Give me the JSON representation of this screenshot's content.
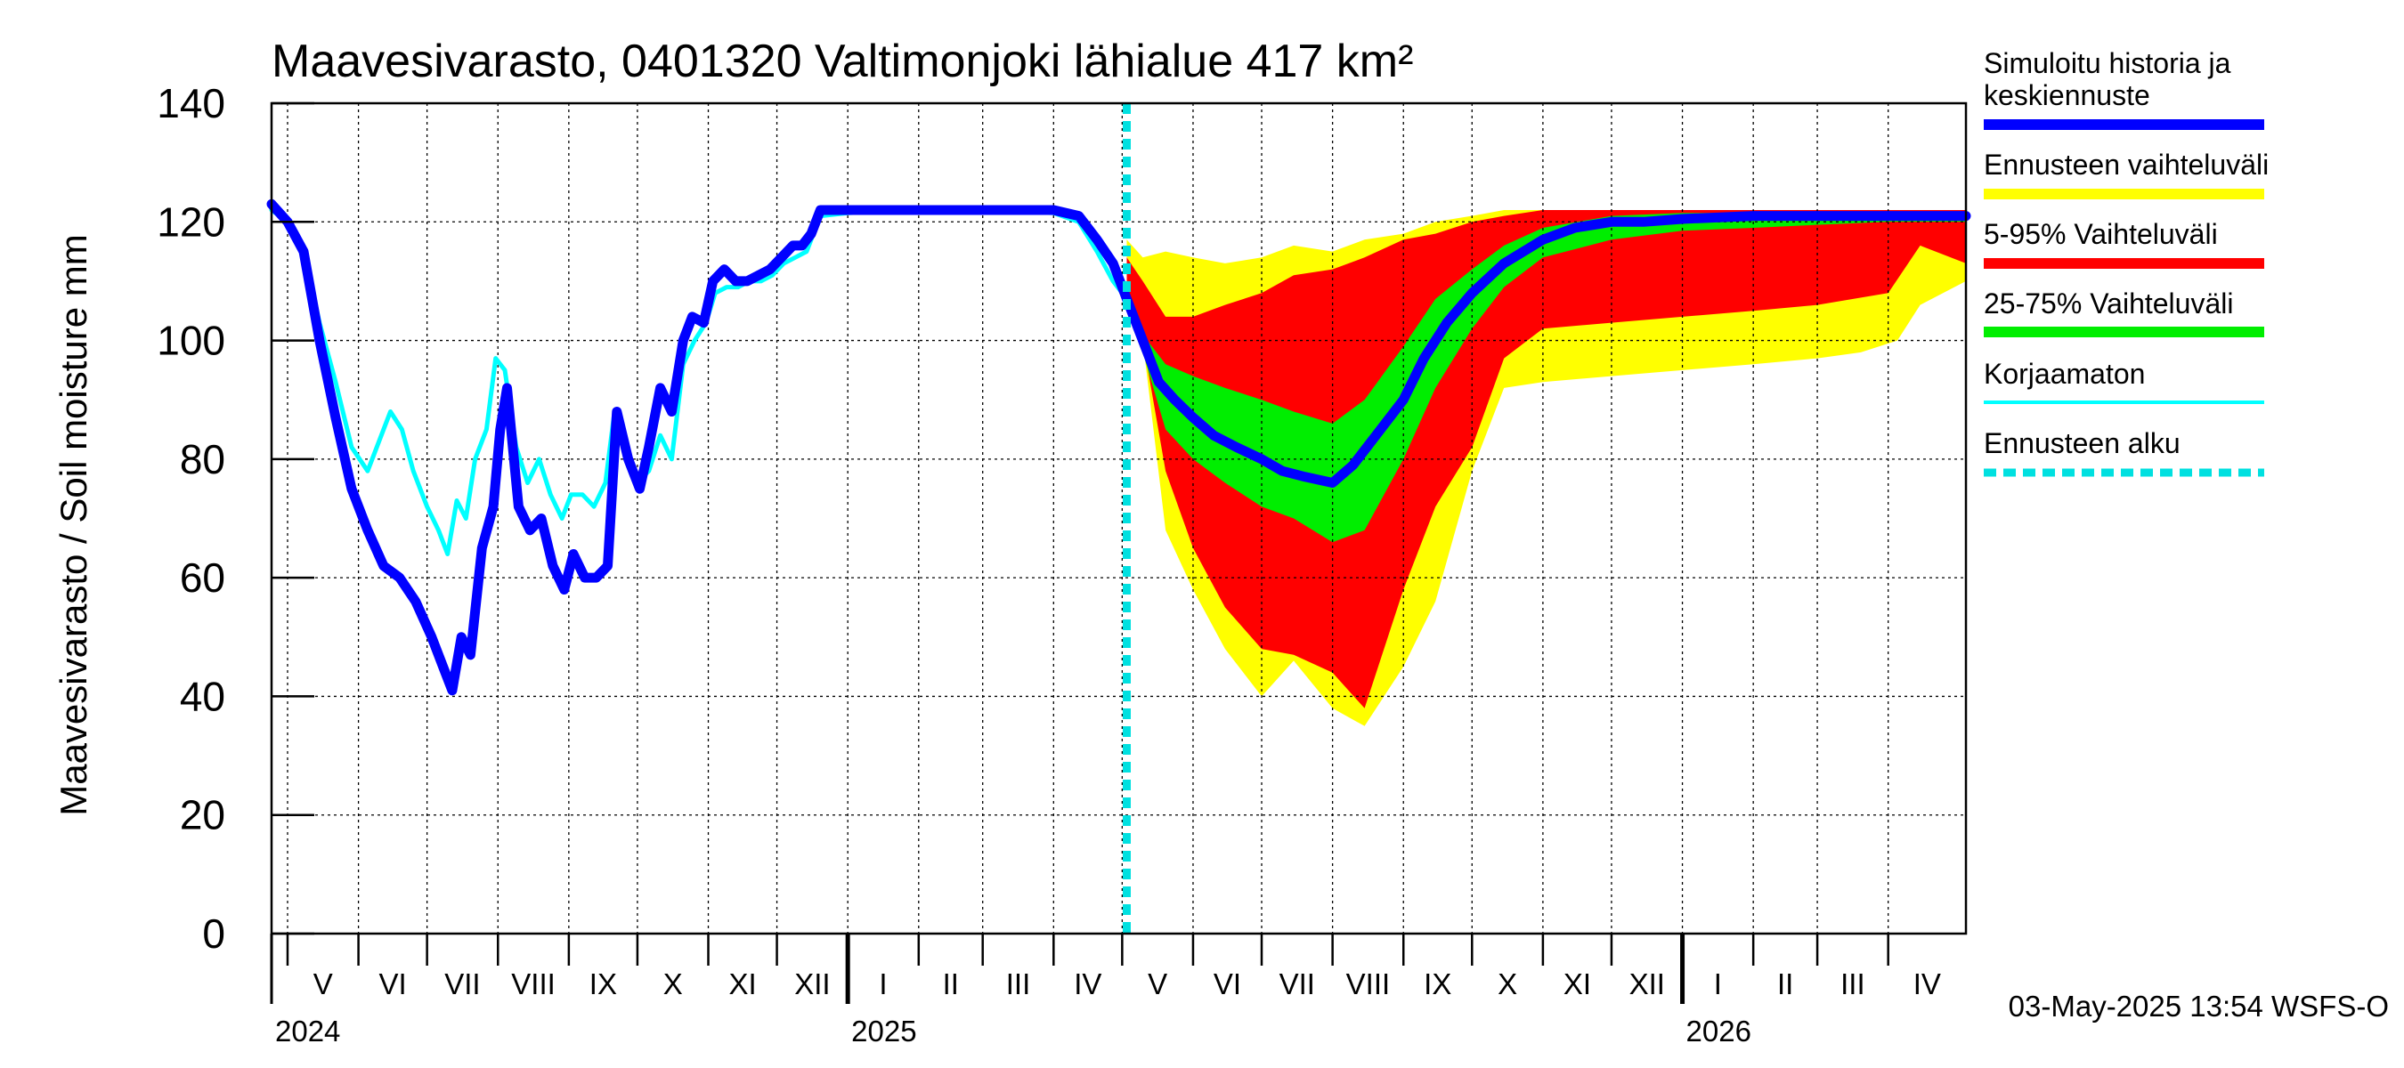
{
  "chart_data": {
    "type": "area",
    "title": "Maavesivarasto, 0401320 Valtimonjoki lähialue 417 km²",
    "ylabel": "Maavesivarasto / Soil moisture   mm",
    "ylim": [
      0,
      140
    ],
    "yticks": [
      0,
      20,
      40,
      60,
      80,
      100,
      120,
      140
    ],
    "xlim": [
      "2024-04-24",
      "2026-05-05"
    ],
    "forecast_start": "2025-05-03",
    "grid": true,
    "legend_position": "right",
    "month_labels": [
      {
        "label": "V",
        "date": "2024-05-01"
      },
      {
        "label": "VI",
        "date": "2024-06-01"
      },
      {
        "label": "VII",
        "date": "2024-07-01"
      },
      {
        "label": "VIII",
        "date": "2024-08-01"
      },
      {
        "label": "IX",
        "date": "2024-09-01"
      },
      {
        "label": "X",
        "date": "2024-10-01"
      },
      {
        "label": "XI",
        "date": "2024-11-01"
      },
      {
        "label": "XII",
        "date": "2024-12-01"
      },
      {
        "label": "I",
        "date": "2025-01-01"
      },
      {
        "label": "II",
        "date": "2025-02-01"
      },
      {
        "label": "III",
        "date": "2025-03-01"
      },
      {
        "label": "IV",
        "date": "2025-04-01"
      },
      {
        "label": "V",
        "date": "2025-05-01"
      },
      {
        "label": "VI",
        "date": "2025-06-01"
      },
      {
        "label": "VII",
        "date": "2025-07-01"
      },
      {
        "label": "VIII",
        "date": "2025-08-01"
      },
      {
        "label": "IX",
        "date": "2025-09-01"
      },
      {
        "label": "X",
        "date": "2025-10-01"
      },
      {
        "label": "XI",
        "date": "2025-11-01"
      },
      {
        "label": "XII",
        "date": "2025-12-01"
      },
      {
        "label": "I",
        "date": "2026-01-01"
      },
      {
        "label": "II",
        "date": "2026-02-01"
      },
      {
        "label": "III",
        "date": "2026-03-01"
      },
      {
        "label": "IV",
        "date": "2026-04-01"
      }
    ],
    "year_labels": [
      {
        "label": "2024",
        "date": "2024-04-24"
      },
      {
        "label": "2025",
        "date": "2025-01-01"
      },
      {
        "label": "2026",
        "date": "2026-01-01"
      }
    ],
    "legend": [
      {
        "label": "Simuloitu historia ja\nkeskiennuste",
        "color": "#0000ff",
        "style": "solid-thick"
      },
      {
        "label": "Ennusteen vaihteluväli",
        "color": "#ffff00",
        "style": "solid-thick"
      },
      {
        "label": "5-95% Vaihteluväli",
        "color": "#ff0000",
        "style": "solid-thick"
      },
      {
        "label": "25-75% Vaihteluväli",
        "color": "#00ee00",
        "style": "solid-thick"
      },
      {
        "label": "Korjaamaton",
        "color": "#00ffff",
        "style": "solid-thin"
      },
      {
        "label": "Ennusteen alku",
        "color": "#00e0e0",
        "style": "dashed"
      }
    ],
    "footer": "03-May-2025 13:54 WSFS-O",
    "series": [
      {
        "name": "Simuloitu historia ja keskiennuste",
        "color": "#0000ff",
        "points": [
          [
            "2024-04-24",
            123
          ],
          [
            "2024-05-01",
            120
          ],
          [
            "2024-05-08",
            115
          ],
          [
            "2024-05-15",
            100
          ],
          [
            "2024-05-22",
            87
          ],
          [
            "2024-05-29",
            75
          ],
          [
            "2024-06-05",
            68
          ],
          [
            "2024-06-12",
            62
          ],
          [
            "2024-06-19",
            60
          ],
          [
            "2024-06-26",
            56
          ],
          [
            "2024-07-03",
            50
          ],
          [
            "2024-07-08",
            45
          ],
          [
            "2024-07-12",
            41
          ],
          [
            "2024-07-16",
            50
          ],
          [
            "2024-07-20",
            47
          ],
          [
            "2024-07-25",
            65
          ],
          [
            "2024-07-30",
            72
          ],
          [
            "2024-08-02",
            85
          ],
          [
            "2024-08-05",
            92
          ],
          [
            "2024-08-10",
            72
          ],
          [
            "2024-08-15",
            68
          ],
          [
            "2024-08-20",
            70
          ],
          [
            "2024-08-25",
            62
          ],
          [
            "2024-08-30",
            58
          ],
          [
            "2024-09-03",
            64
          ],
          [
            "2024-09-08",
            60
          ],
          [
            "2024-09-13",
            60
          ],
          [
            "2024-09-18",
            62
          ],
          [
            "2024-09-22",
            88
          ],
          [
            "2024-09-27",
            80
          ],
          [
            "2024-10-02",
            75
          ],
          [
            "2024-10-06",
            82
          ],
          [
            "2024-10-11",
            92
          ],
          [
            "2024-10-16",
            88
          ],
          [
            "2024-10-21",
            100
          ],
          [
            "2024-10-25",
            104
          ],
          [
            "2024-10-30",
            103
          ],
          [
            "2024-11-03",
            110
          ],
          [
            "2024-11-08",
            112
          ],
          [
            "2024-11-13",
            110
          ],
          [
            "2024-11-18",
            110
          ],
          [
            "2024-11-23",
            111
          ],
          [
            "2024-11-28",
            112
          ],
          [
            "2024-12-03",
            114
          ],
          [
            "2024-12-08",
            116
          ],
          [
            "2024-12-12",
            116
          ],
          [
            "2024-12-16",
            118
          ],
          [
            "2024-12-20",
            122
          ],
          [
            "2025-01-01",
            122
          ],
          [
            "2025-02-01",
            122
          ],
          [
            "2025-03-01",
            122
          ],
          [
            "2025-04-01",
            122
          ],
          [
            "2025-04-12",
            121
          ],
          [
            "2025-04-20",
            117
          ],
          [
            "2025-04-27",
            113
          ],
          [
            "2025-05-03",
            107
          ],
          [
            "2025-05-10",
            100
          ],
          [
            "2025-05-17",
            93
          ],
          [
            "2025-05-24",
            90
          ],
          [
            "2025-06-01",
            87
          ],
          [
            "2025-06-10",
            84
          ],
          [
            "2025-06-20",
            82
          ],
          [
            "2025-07-01",
            80
          ],
          [
            "2025-07-10",
            78
          ],
          [
            "2025-07-20",
            77
          ],
          [
            "2025-08-01",
            76
          ],
          [
            "2025-08-10",
            79
          ],
          [
            "2025-08-20",
            84
          ],
          [
            "2025-09-01",
            90
          ],
          [
            "2025-09-10",
            97
          ],
          [
            "2025-09-20",
            103
          ],
          [
            "2025-10-01",
            108
          ],
          [
            "2025-10-15",
            113
          ],
          [
            "2025-11-01",
            117
          ],
          [
            "2025-11-15",
            119
          ],
          [
            "2025-12-01",
            120
          ],
          [
            "2025-12-15",
            120
          ],
          [
            "2026-01-01",
            120.5
          ],
          [
            "2026-02-01",
            121
          ],
          [
            "2026-03-01",
            121
          ],
          [
            "2026-04-01",
            121
          ],
          [
            "2026-05-05",
            121
          ]
        ]
      },
      {
        "name": "Korjaamaton",
        "color": "#00ffff",
        "points": [
          [
            "2024-04-24",
            122
          ],
          [
            "2024-05-01",
            120
          ],
          [
            "2024-05-08",
            115
          ],
          [
            "2024-05-15",
            103
          ],
          [
            "2024-05-22",
            93
          ],
          [
            "2024-05-29",
            82
          ],
          [
            "2024-06-05",
            78
          ],
          [
            "2024-06-10",
            83
          ],
          [
            "2024-06-15",
            88
          ],
          [
            "2024-06-20",
            85
          ],
          [
            "2024-06-25",
            78
          ],
          [
            "2024-07-01",
            72
          ],
          [
            "2024-07-06",
            68
          ],
          [
            "2024-07-10",
            64
          ],
          [
            "2024-07-14",
            73
          ],
          [
            "2024-07-18",
            70
          ],
          [
            "2024-07-22",
            80
          ],
          [
            "2024-07-27",
            85
          ],
          [
            "2024-07-31",
            97
          ],
          [
            "2024-08-04",
            95
          ],
          [
            "2024-08-09",
            82
          ],
          [
            "2024-08-14",
            76
          ],
          [
            "2024-08-19",
            80
          ],
          [
            "2024-08-24",
            74
          ],
          [
            "2024-08-29",
            70
          ],
          [
            "2024-09-02",
            74
          ],
          [
            "2024-09-07",
            74
          ],
          [
            "2024-09-12",
            72
          ],
          [
            "2024-09-17",
            76
          ],
          [
            "2024-09-21",
            88
          ],
          [
            "2024-09-26",
            80
          ],
          [
            "2024-10-01",
            76
          ],
          [
            "2024-10-06",
            78
          ],
          [
            "2024-10-11",
            84
          ],
          [
            "2024-10-16",
            80
          ],
          [
            "2024-10-21",
            96
          ],
          [
            "2024-10-26",
            100
          ],
          [
            "2024-10-31",
            103
          ],
          [
            "2024-11-04",
            108
          ],
          [
            "2024-11-09",
            109
          ],
          [
            "2024-11-14",
            109
          ],
          [
            "2024-11-19",
            110
          ],
          [
            "2024-11-24",
            110
          ],
          [
            "2024-11-29",
            111
          ],
          [
            "2024-12-04",
            113
          ],
          [
            "2024-12-09",
            114
          ],
          [
            "2024-12-14",
            115
          ],
          [
            "2024-12-20",
            121
          ],
          [
            "2025-01-01",
            121.5
          ],
          [
            "2025-02-01",
            122
          ],
          [
            "2025-03-01",
            122
          ],
          [
            "2025-04-01",
            121.5
          ],
          [
            "2025-04-12",
            120
          ],
          [
            "2025-04-20",
            115
          ],
          [
            "2025-04-27",
            110
          ],
          [
            "2025-05-03",
            107
          ]
        ]
      }
    ],
    "bands": [
      {
        "name": "Ennusteen vaihteluväli",
        "color": "#ffff00",
        "points": [
          [
            "2025-05-03",
            107,
            117
          ],
          [
            "2025-05-10",
            100,
            114
          ],
          [
            "2025-05-20",
            68,
            115
          ],
          [
            "2025-06-01",
            58,
            114
          ],
          [
            "2025-06-15",
            48,
            113
          ],
          [
            "2025-07-01",
            40,
            114
          ],
          [
            "2025-07-15",
            46,
            116
          ],
          [
            "2025-08-01",
            38,
            115
          ],
          [
            "2025-08-15",
            35,
            117
          ],
          [
            "2025-09-01",
            45,
            118
          ],
          [
            "2025-09-15",
            56,
            120
          ],
          [
            "2025-10-01",
            78,
            121
          ],
          [
            "2025-10-15",
            92,
            122
          ],
          [
            "2025-11-01",
            93,
            122
          ],
          [
            "2025-12-01",
            94,
            122
          ],
          [
            "2026-01-01",
            95,
            122
          ],
          [
            "2026-02-01",
            96,
            122
          ],
          [
            "2026-03-01",
            97,
            122
          ],
          [
            "2026-03-20",
            98,
            122
          ],
          [
            "2026-04-05",
            100,
            122
          ],
          [
            "2026-04-15",
            106,
            122
          ],
          [
            "2026-05-05",
            110,
            122
          ]
        ]
      },
      {
        "name": "5-95% Vaihteluväli",
        "color": "#ff0000",
        "points": [
          [
            "2025-05-03",
            107,
            114
          ],
          [
            "2025-05-10",
            100,
            110
          ],
          [
            "2025-05-20",
            78,
            104
          ],
          [
            "2025-06-01",
            65,
            104
          ],
          [
            "2025-06-15",
            55,
            106
          ],
          [
            "2025-07-01",
            48,
            108
          ],
          [
            "2025-07-15",
            47,
            111
          ],
          [
            "2025-08-01",
            44,
            112
          ],
          [
            "2025-08-15",
            38,
            114
          ],
          [
            "2025-09-01",
            58,
            117
          ],
          [
            "2025-09-15",
            72,
            118
          ],
          [
            "2025-10-01",
            82,
            120
          ],
          [
            "2025-10-15",
            97,
            121
          ],
          [
            "2025-11-01",
            102,
            122
          ],
          [
            "2025-12-01",
            103,
            122
          ],
          [
            "2026-01-01",
            104,
            122
          ],
          [
            "2026-02-01",
            105,
            122
          ],
          [
            "2026-03-01",
            106,
            122
          ],
          [
            "2026-04-01",
            108,
            122
          ],
          [
            "2026-04-15",
            116,
            122
          ],
          [
            "2026-05-05",
            113,
            122
          ]
        ]
      },
      {
        "name": "25-75% Vaihteluväli",
        "color": "#00ee00",
        "points": [
          [
            "2025-05-03",
            107,
            108
          ],
          [
            "2025-05-10",
            98,
            101
          ],
          [
            "2025-05-20",
            85,
            96
          ],
          [
            "2025-06-01",
            80,
            94
          ],
          [
            "2025-06-15",
            76,
            92
          ],
          [
            "2025-07-01",
            72,
            90
          ],
          [
            "2025-07-15",
            70,
            88
          ],
          [
            "2025-08-01",
            66,
            86
          ],
          [
            "2025-08-15",
            68,
            90
          ],
          [
            "2025-09-01",
            80,
            99
          ],
          [
            "2025-09-15",
            92,
            107
          ],
          [
            "2025-10-01",
            102,
            112
          ],
          [
            "2025-10-15",
            109,
            116
          ],
          [
            "2025-11-01",
            114,
            119
          ],
          [
            "2025-12-01",
            117,
            121
          ],
          [
            "2026-01-01",
            118.5,
            121.5
          ],
          [
            "2026-02-01",
            119,
            121.5
          ],
          [
            "2026-03-01",
            119.5,
            121.5
          ],
          [
            "2026-04-01",
            120,
            121.5
          ],
          [
            "2026-05-05",
            120,
            121.5
          ]
        ]
      }
    ]
  }
}
